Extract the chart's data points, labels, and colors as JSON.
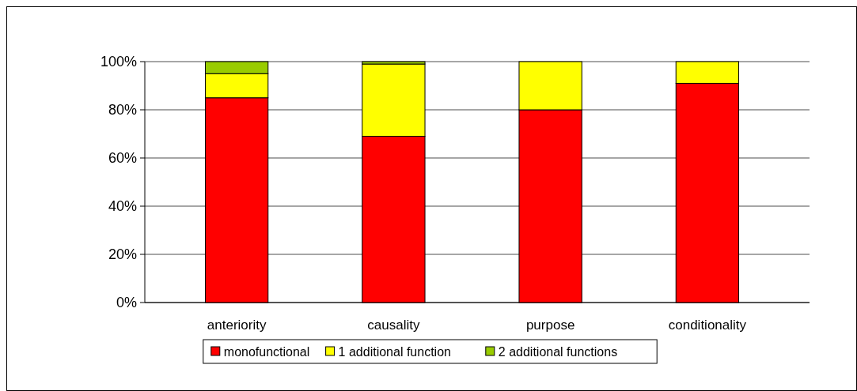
{
  "chart_data": {
    "type": "bar",
    "stacked": true,
    "categories": [
      "anteriority",
      "causality",
      "purpose",
      "conditionality"
    ],
    "series": [
      {
        "name": "monofunctional",
        "color": "#ff0000",
        "values": [
          85,
          69,
          80,
          91
        ]
      },
      {
        "name": "1 additional function",
        "color": "#ffff00",
        "values": [
          10,
          30,
          20,
          9
        ]
      },
      {
        "name": "2 additional functions",
        "color": "#99cc00",
        "values": [
          5,
          1,
          0,
          0
        ]
      }
    ],
    "ylim": [
      0,
      100
    ],
    "yticks": [
      {
        "value": 0,
        "label": "0%"
      },
      {
        "value": 20,
        "label": "20%"
      },
      {
        "value": 40,
        "label": "40%"
      },
      {
        "value": 60,
        "label": "60%"
      },
      {
        "value": 80,
        "label": "80%"
      },
      {
        "value": 100,
        "label": "100%"
      }
    ],
    "grid": "y",
    "legend": "bottom"
  }
}
